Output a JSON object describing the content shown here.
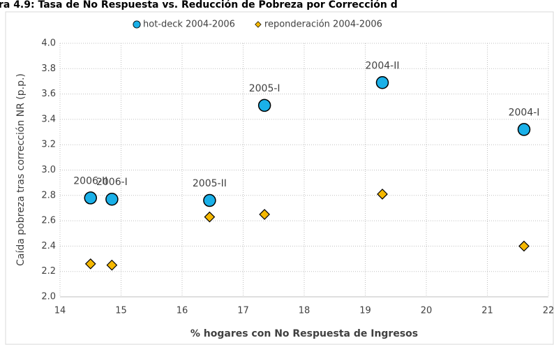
{
  "chart_data": {
    "type": "scatter",
    "title": "ura 4.9: Tasa de No Respuesta vs. Reducción de Pobreza por Corrección d",
    "x_label": "% hogares con No Respuesta de Ingresos",
    "y_label": "Caída pobreza tras corrección NR (p.p.)",
    "x": [
      14.5,
      14.85,
      16.45,
      17.35,
      19.28,
      21.6
    ],
    "series": [
      {
        "name": "hot-deck 2004-2006",
        "color": "#1ab0e8",
        "marker": "circle",
        "values": [
          2.78,
          2.77,
          2.76,
          3.51,
          3.69,
          3.32
        ],
        "point_labels": [
          "2006-II",
          "2006-I",
          "2005-II",
          "2005-I",
          "2004-II",
          "2004-I"
        ]
      },
      {
        "name": "reponderación 2004-2006",
        "color": "#f5b800",
        "marker": "diamond",
        "values": [
          2.26,
          2.25,
          2.63,
          2.65,
          2.81,
          2.4
        ]
      }
    ],
    "xlim": [
      14,
      22
    ],
    "xticks": [
      14,
      15,
      16,
      17,
      18,
      19,
      20,
      21,
      22
    ],
    "ylim": [
      2.0,
      4.0
    ],
    "yticks": [
      {
        "value": 2.0,
        "label": "2.0"
      },
      {
        "value": 2.2,
        "label": "2.2"
      },
      {
        "value": 2.4,
        "label": "2.4"
      },
      {
        "value": 2.6,
        "label": "2.6"
      },
      {
        "value": 2.8,
        "label": "2.8"
      },
      {
        "value": 3.0,
        "label": "3.0"
      },
      {
        "value": 3.2,
        "label": "3.2"
      },
      {
        "value": 3.4,
        "label": "3.4"
      },
      {
        "value": 3.6,
        "label": "3.6"
      },
      {
        "value": 3.8,
        "label": "3.8"
      },
      {
        "value": 4.0,
        "label": "4.0"
      }
    ],
    "grid": true,
    "legend": "top"
  }
}
